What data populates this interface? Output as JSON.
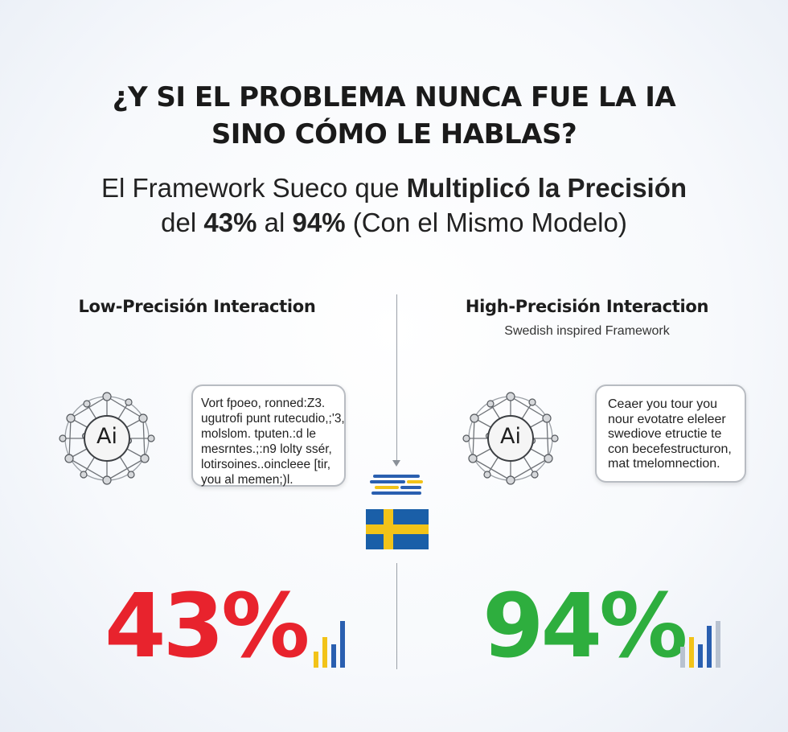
{
  "header": {
    "title_line1": "¿Y SI EL PROBLEMA NUNCA FUE LA IA",
    "title_line2": "SINO CÓMO LE HABLAS?",
    "subtitle_pre": "El Framework Sueco que ",
    "subtitle_bold": "Multiplicó la Precisión",
    "subtitle_l2_a": "del ",
    "subtitle_l2_b": "43%",
    "subtitle_l2_c": " al ",
    "subtitle_l2_d": "94%",
    "subtitle_l2_e": " (Con el Mismo Modelo)"
  },
  "left": {
    "heading": "Low-Precisión Interaction",
    "ai_label": "Ai",
    "bubble_lines": [
      "Vort fpoeo, ronned:Z3.",
      "ugutrofi punt rutecudio,;'3,",
      "molslom. tputen.:d le",
      "mesrntes.;:n9 lolty ssér,",
      "lotirsoines..oincleee [tir,",
      "you al memen;)l."
    ],
    "percent": "43%",
    "percent_color": "#e8232d",
    "mini_chart": [
      {
        "value": 0.35,
        "color": "#f2c318"
      },
      {
        "value": 0.65,
        "color": "#f2c318"
      },
      {
        "value": 0.5,
        "color": "#2a5fb0"
      },
      {
        "value": 1.0,
        "color": "#2a5fb0"
      }
    ]
  },
  "right": {
    "heading": "High-Precisión Interaction",
    "subheading": "Swedish inspired Framework",
    "ai_label": "Ai",
    "bubble_lines": [
      "Ceaer you tour you",
      "nour evotatre eleleer",
      "swediove etructie te",
      "con becefestructuron,",
      "mat tmelomnection."
    ],
    "percent": "94%",
    "percent_color": "#2eae3e",
    "mini_chart": [
      {
        "value": 0.45,
        "color": "#b8c2d0"
      },
      {
        "value": 0.65,
        "color": "#f2c318"
      },
      {
        "value": 0.5,
        "color": "#2a5fb0"
      },
      {
        "value": 0.9,
        "color": "#2a5fb0"
      },
      {
        "value": 1.0,
        "color": "#b8c2d0"
      }
    ]
  },
  "colors": {
    "flag_blue": "#1a5fa8",
    "flag_yellow": "#f2c318"
  },
  "icons": {
    "ai_network": "neural-network-ai-icon",
    "flag": "swedish-flag-icon",
    "bars": "bar-chart-icon"
  }
}
